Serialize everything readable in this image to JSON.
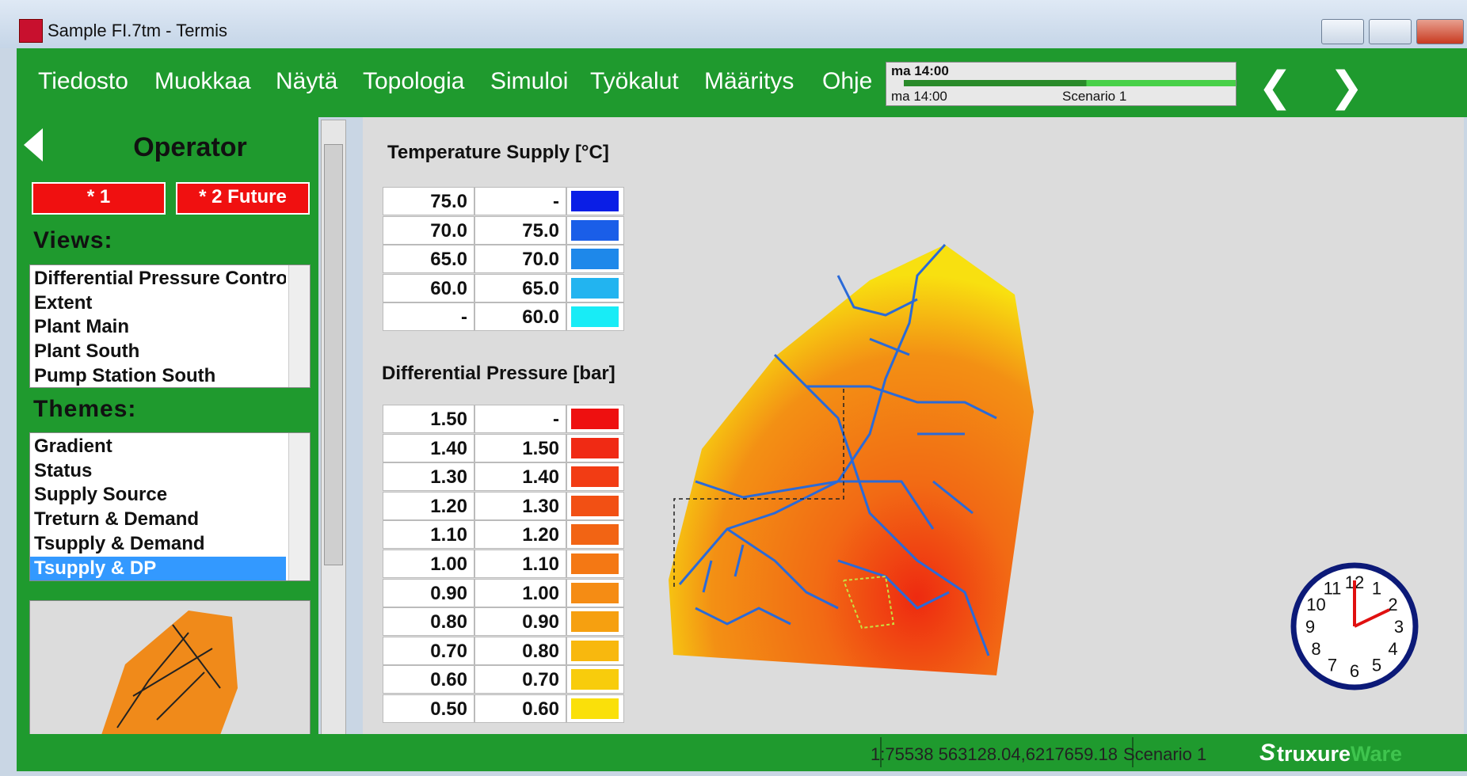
{
  "window": {
    "title": "Sample FI.7tm - Termis"
  },
  "menu": [
    "Tiedosto",
    "Muokkaa",
    "Näytä",
    "Topologia",
    "Simuloi",
    "Työkalut",
    "Määritys",
    "Ohje"
  ],
  "time_bar": {
    "current": "ma 14:00",
    "start": "ma 14:00",
    "scenario": "Scenario 1"
  },
  "panel": {
    "title": "Operator",
    "buttons": [
      "* 1",
      "* 2 Future"
    ],
    "views_label": "Views:",
    "views": [
      "Differential Pressure Control",
      "Extent",
      "Plant Main",
      "Plant South",
      "Pump Station South"
    ],
    "themes_label": "Themes:",
    "themes": [
      "Gradient",
      "Status",
      "Supply Source",
      "Treturn & Demand",
      "Tsupply & Demand",
      "Tsupply & DP"
    ]
  },
  "legends": [
    {
      "title": "Temperature Supply [°C]",
      "rows": [
        {
          "from": "75.0",
          "to": "-",
          "color": "#0a1ee6"
        },
        {
          "from": "70.0",
          "to": "75.0",
          "color": "#1a5ee8"
        },
        {
          "from": "65.0",
          "to": "70.0",
          "color": "#1e88ea"
        },
        {
          "from": "60.0",
          "to": "65.0",
          "color": "#22b4f0"
        },
        {
          "from": "-",
          "to": "60.0",
          "color": "#18ecf6"
        }
      ]
    },
    {
      "title": "Differential Pressure [bar]",
      "rows": [
        {
          "from": "1.50",
          "to": "-",
          "color": "#ee1010"
        },
        {
          "from": "1.40",
          "to": "1.50",
          "color": "#f02a14"
        },
        {
          "from": "1.30",
          "to": "1.40",
          "color": "#f23c14"
        },
        {
          "from": "1.20",
          "to": "1.30",
          "color": "#f25014"
        },
        {
          "from": "1.10",
          "to": "1.20",
          "color": "#f26414"
        },
        {
          "from": "1.00",
          "to": "1.10",
          "color": "#f47814"
        },
        {
          "from": "0.90",
          "to": "1.00",
          "color": "#f58c14"
        },
        {
          "from": "0.80",
          "to": "0.90",
          "color": "#f6a010"
        },
        {
          "from": "0.70",
          "to": "0.80",
          "color": "#f8b80e"
        },
        {
          "from": "0.60",
          "to": "0.70",
          "color": "#f8cc0c"
        },
        {
          "from": "0.50",
          "to": "0.60",
          "color": "#fae00a"
        }
      ]
    }
  ],
  "clock": {
    "numbers": [
      "12",
      "1",
      "2",
      "3",
      "4",
      "5",
      "6",
      "7",
      "8",
      "9",
      "10",
      "11"
    ]
  },
  "status": {
    "coords": "1:75538 563128.04,6217659.18",
    "scenario": "Scenario 1",
    "logo_main": "truxure",
    "logo_tail": "Ware"
  }
}
